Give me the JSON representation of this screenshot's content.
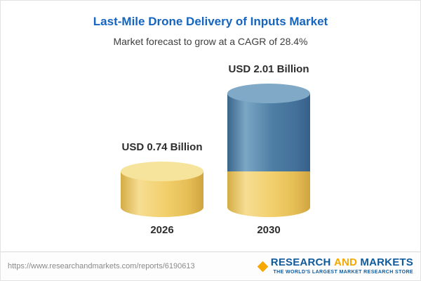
{
  "header": {
    "title": "Last-Mile Drone Delivery of Inputs Market",
    "subtitle": "Market forecast to grow at a CAGR of 28.4%"
  },
  "chart_data": {
    "type": "bar",
    "title": "Last-Mile Drone Delivery of Inputs Market",
    "subtitle": "Market forecast to grow at a CAGR of 28.4%",
    "cagr": "28.4%",
    "unit": "USD Billion",
    "categories": [
      "2026",
      "2030"
    ],
    "values": [
      0.74,
      2.01
    ],
    "value_labels": [
      "USD 0.74 Billion",
      "USD 2.01 Billion"
    ],
    "ylim": [
      0,
      2.01
    ],
    "grid": false,
    "legend": false,
    "colors": {
      "bar_2026": "#F2CF6B",
      "bar_2030_growth": "#4D7EA3",
      "bar_2030_base": "#F2CF6B"
    },
    "notes": "2030 cylinder is stacked: yellow base equal to 2026 value, blue portion is growth to 2.01"
  },
  "footer": {
    "url": "https://www.researchandmarkets.com/reports/6190613",
    "logo": {
      "word1": "RESEARCH",
      "word2": "AND",
      "word3": "MARKETS",
      "tagline": "THE WORLD'S LARGEST MARKET RESEARCH STORE"
    }
  }
}
